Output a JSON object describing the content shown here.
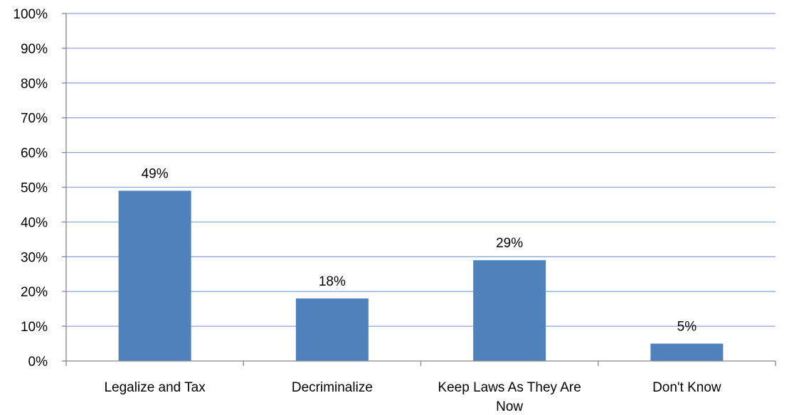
{
  "chart_data": {
    "type": "bar",
    "categories": [
      [
        "Legalize and Tax"
      ],
      [
        "Decriminalize"
      ],
      [
        "Keep Laws As They Are",
        "Now"
      ],
      [
        "Don't Know"
      ]
    ],
    "values": [
      49,
      18,
      29,
      5
    ],
    "data_labels": [
      "49%",
      "18%",
      "29%",
      "5%"
    ],
    "y_ticks": [
      "0%",
      "10%",
      "20%",
      "30%",
      "40%",
      "50%",
      "60%",
      "70%",
      "80%",
      "90%",
      "100%"
    ],
    "ylim": [
      0,
      100
    ],
    "y_unit": "%",
    "grid": true,
    "legend": "none",
    "colors": {
      "bar": "#4F81BD",
      "grid": "#8EA9DB",
      "axis": "#868686",
      "text": "#000000"
    }
  }
}
